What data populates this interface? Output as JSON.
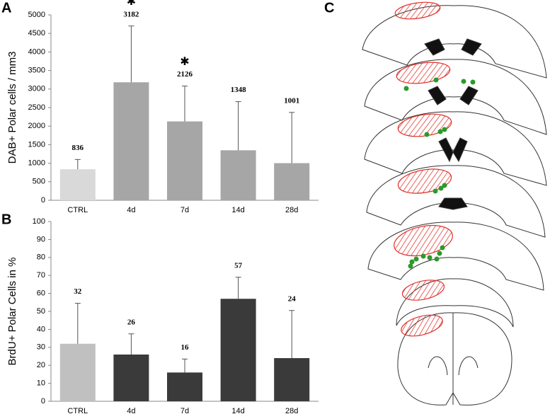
{
  "chart_data": [
    {
      "type": "bar",
      "panel": "A",
      "ylabel": "DAB+ Polar cells / mm3",
      "categories": [
        "CTRL",
        "4d",
        "7d",
        "14d",
        "28d"
      ],
      "values": [
        836,
        3182,
        2126,
        1348,
        1001
      ],
      "errors": [
        264,
        1518,
        954,
        1312,
        1369
      ],
      "markers": [
        null,
        "✱",
        "✱",
        null,
        null
      ],
      "colors": [
        "#d9d9d9",
        "#a6a6a6",
        "#a6a6a6",
        "#a6a6a6",
        "#a6a6a6"
      ],
      "ylim": [
        0,
        5000
      ],
      "yticks": [
        0,
        500,
        1000,
        1500,
        2000,
        2500,
        3000,
        3500,
        4000,
        4500,
        5000
      ]
    },
    {
      "type": "bar",
      "panel": "B",
      "ylabel": "BrdU+ Polar Cells in %",
      "categories": [
        "CTRL",
        "4d",
        "7d",
        "14d",
        "28d"
      ],
      "values": [
        32,
        26,
        16,
        57,
        24
      ],
      "errors": [
        22.5,
        11.5,
        7.5,
        12,
        26.5
      ],
      "colors": [
        "#c0c0c0",
        "#3a3a3a",
        "#3a3a3a",
        "#3a3a3a",
        "#3a3a3a"
      ],
      "ylim": [
        0,
        100
      ],
      "yticks": [
        0,
        10,
        20,
        30,
        40,
        50,
        60,
        70,
        80,
        90,
        100
      ]
    }
  ],
  "diagram": {
    "panel": "C"
  }
}
